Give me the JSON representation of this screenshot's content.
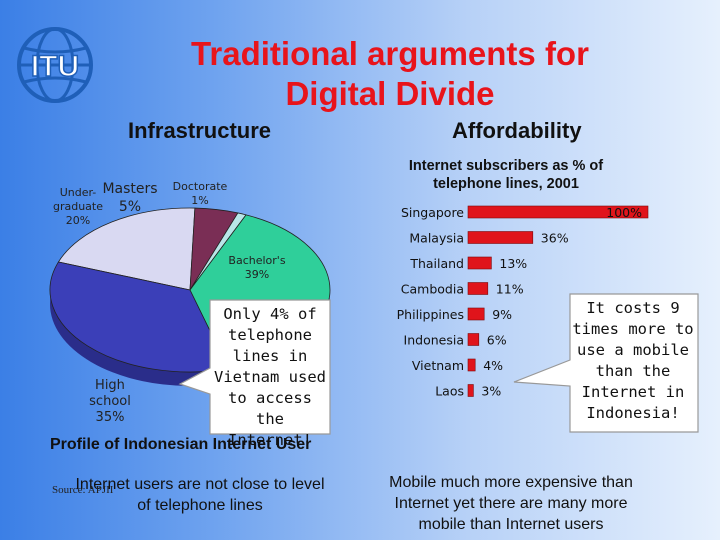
{
  "header": {
    "title_line1": "Traditional arguments for",
    "title_line2": "Digital Divide",
    "logo_text": "ITU"
  },
  "sections": {
    "left": "Infrastructure",
    "right": "Affordability"
  },
  "chart_data": [
    {
      "type": "pie",
      "title": "Profile of Indonesian Internet User",
      "source": "Source: APJII",
      "slices": [
        {
          "label_lines": [
            "Under-",
            "graduate",
            "20%"
          ],
          "value": 20,
          "color": "#d9d9f2"
        },
        {
          "label_lines": [
            "Masters",
            "5%"
          ],
          "value": 5,
          "color": "#7a2e55"
        },
        {
          "label_lines": [
            "Doctorate",
            "1%"
          ],
          "value": 1,
          "color": "#b8e6e8"
        },
        {
          "label_lines": [
            "Bachelor's",
            "39%"
          ],
          "value": 39,
          "color": "#2fcf9a"
        },
        {
          "label_lines": [
            "High",
            "school",
            "35%"
          ],
          "value": 35,
          "color": "#3b3fb8"
        }
      ]
    },
    {
      "type": "bar",
      "orientation": "horizontal",
      "title_lines": [
        "Internet subscribers as % of",
        "telephone lines, 2001"
      ],
      "categories": [
        "Singapore",
        "Malaysia",
        "Thailand",
        "Cambodia",
        "Philippines",
        "Indonesia",
        "Vietnam",
        "Laos"
      ],
      "values": [
        100,
        36,
        13,
        11,
        9,
        6,
        4,
        3
      ],
      "value_labels": [
        "100%",
        "36%",
        "13%",
        "11%",
        "9%",
        "6%",
        "4%",
        "3%"
      ],
      "xlim": [
        0,
        100
      ],
      "color": "#e0141b"
    }
  ],
  "callouts": {
    "left_lines": [
      "Only 4% of",
      "telephone",
      "lines in",
      "Vietnam used",
      "to access the",
      "Internet!"
    ],
    "right_lines": [
      "It costs 9",
      "times more to",
      "use a mobile",
      "than the",
      "Internet in",
      "Indonesia!"
    ]
  },
  "captions": {
    "left_lines": [
      "Internet users are not close to level",
      "of telephone lines"
    ],
    "right_lines": [
      "Mobile much more expensive than",
      "Internet yet there are many more",
      "mobile than Internet users"
    ]
  },
  "colors": {
    "title": "#e8141b",
    "bar": "#e0141b",
    "logo": "#1f5fb8"
  }
}
